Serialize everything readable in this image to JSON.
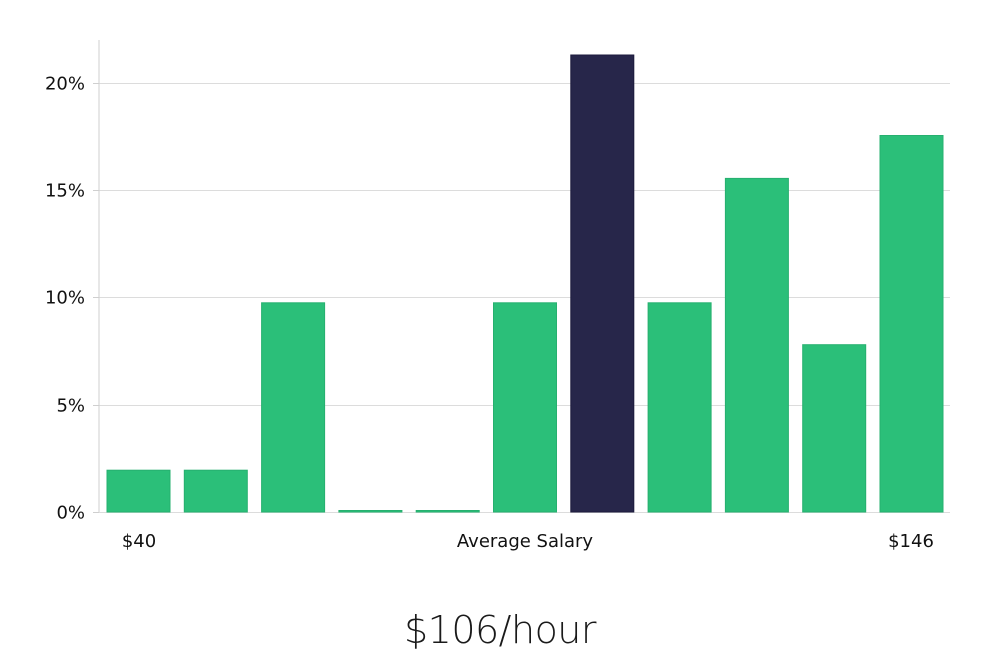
{
  "chart_data": {
    "type": "bar",
    "values": [
      1.95,
      1.95,
      9.75,
      0,
      0,
      9.75,
      21.3,
      9.75,
      15.55,
      7.8,
      17.55
    ],
    "highlight_index": 6,
    "ylim": [
      0,
      22
    ],
    "y_ticks": [
      0,
      5,
      10,
      15,
      20
    ],
    "y_tick_suffix": "%",
    "x_labels": {
      "left": "$40",
      "center": "Average Salary",
      "right": "$146"
    },
    "colors": {
      "bar": "#2bbf79",
      "highlight": "#27264a",
      "grid": "#dcdcdc"
    },
    "grid": true
  },
  "summary": {
    "value": "$106/hour"
  }
}
